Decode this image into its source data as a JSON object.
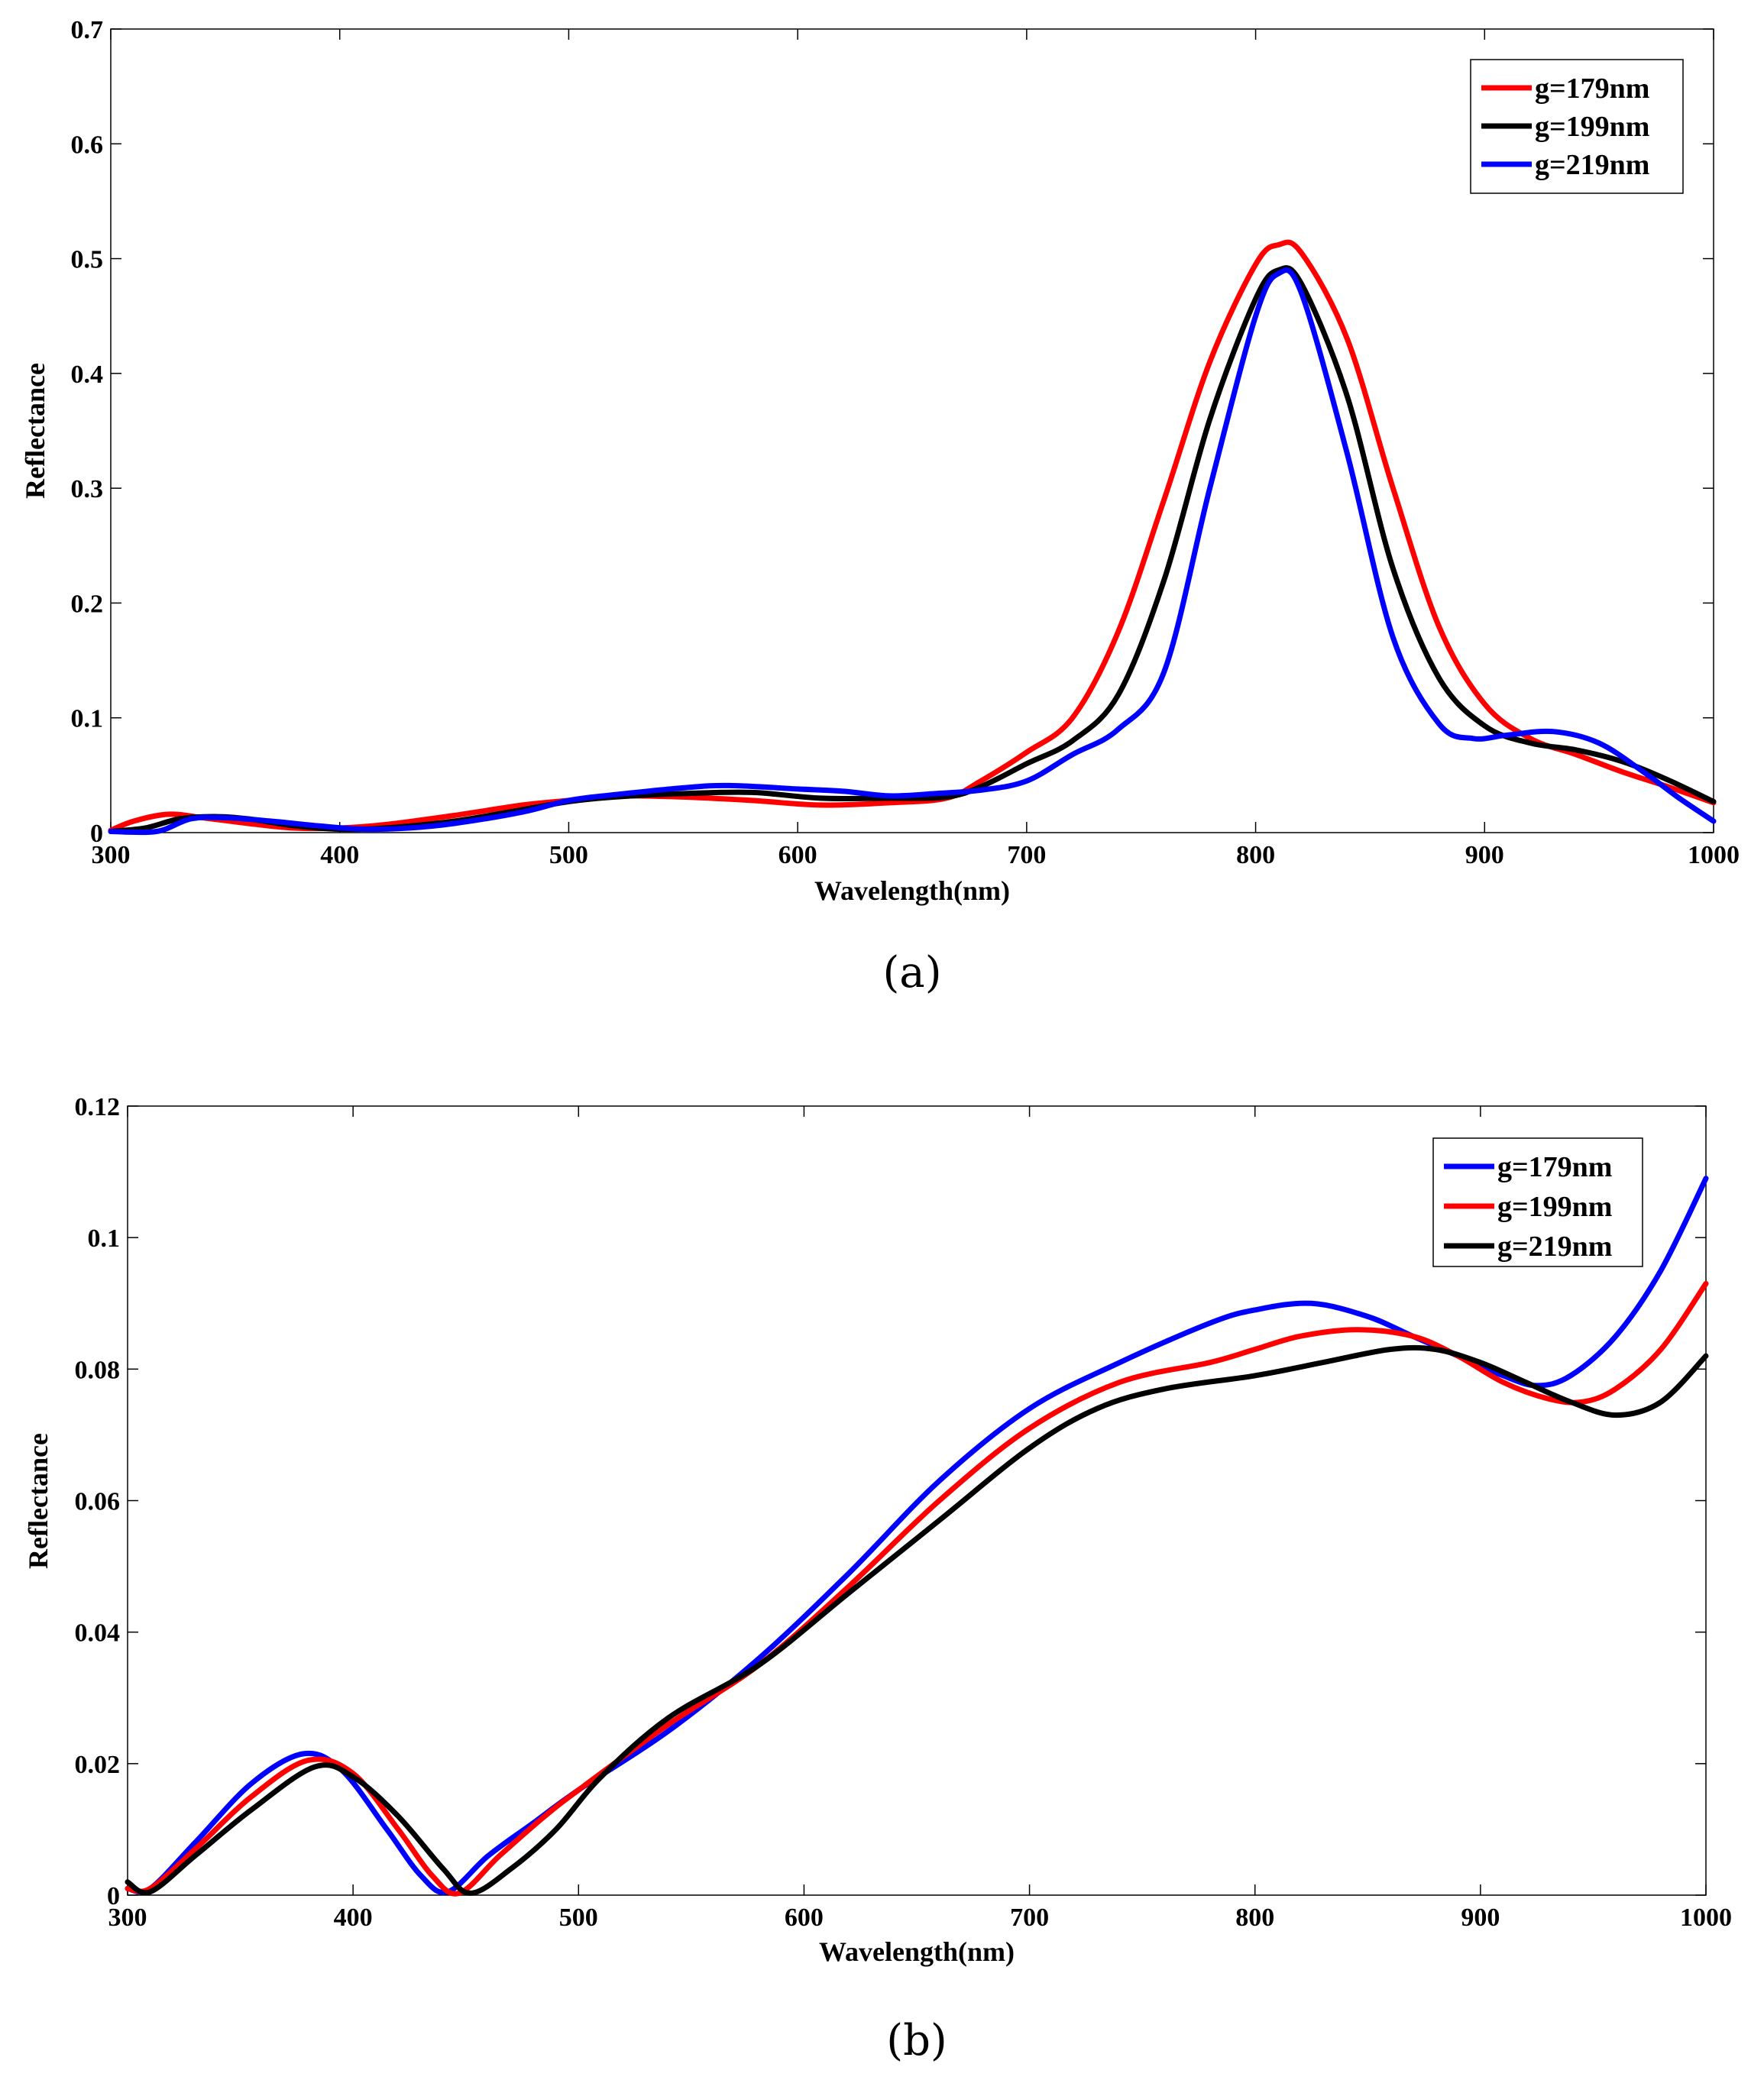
{
  "chart_data": [
    {
      "type": "line",
      "panel_label": "(a)",
      "xlabel": "Wavelength(nm)",
      "ylabel": "Reflectance",
      "xlim": [
        300,
        1000
      ],
      "ylim": [
        0,
        0.7
      ],
      "xticks": [
        300,
        400,
        500,
        600,
        700,
        800,
        900,
        1000
      ],
      "xtick_labels": [
        "300",
        "400",
        "500",
        "600",
        "700",
        "800",
        "900",
        "1000"
      ],
      "yticks": [
        0,
        0.1,
        0.2,
        0.3,
        0.4,
        0.5,
        0.6,
        0.7
      ],
      "ytick_labels": [
        "0",
        "0.1",
        "0.2",
        "0.3",
        "0.4",
        "0.5",
        "0.6",
        "0.7"
      ],
      "legend_position": "top-right",
      "series": [
        {
          "name": "g=179nm",
          "color": "#ff0000",
          "x": [
            300,
            310,
            325,
            340,
            360,
            380,
            400,
            420,
            450,
            480,
            500,
            520,
            550,
            580,
            610,
            640,
            665,
            680,
            700,
            720,
            740,
            760,
            780,
            800,
            810,
            820,
            840,
            860,
            880,
            900,
            920,
            940,
            960,
            980,
            1000
          ],
          "y": [
            0.002,
            0.01,
            0.016,
            0.013,
            0.008,
            0.004,
            0.004,
            0.007,
            0.015,
            0.024,
            0.028,
            0.032,
            0.031,
            0.028,
            0.024,
            0.026,
            0.03,
            0.045,
            0.07,
            0.1,
            0.175,
            0.29,
            0.41,
            0.495,
            0.512,
            0.505,
            0.43,
            0.3,
            0.18,
            0.112,
            0.082,
            0.068,
            0.053,
            0.04,
            0.026
          ]
        },
        {
          "name": "g=199nm",
          "color": "#000000",
          "x": [
            300,
            315,
            330,
            345,
            360,
            380,
            400,
            420,
            450,
            480,
            500,
            520,
            550,
            580,
            610,
            640,
            665,
            680,
            700,
            720,
            740,
            760,
            780,
            800,
            810,
            820,
            840,
            860,
            880,
            900,
            920,
            940,
            960,
            980,
            1000
          ],
          "y": [
            0.001,
            0.004,
            0.012,
            0.014,
            0.012,
            0.006,
            0.003,
            0.004,
            0.01,
            0.02,
            0.027,
            0.031,
            0.034,
            0.035,
            0.03,
            0.03,
            0.031,
            0.04,
            0.06,
            0.08,
            0.12,
            0.22,
            0.36,
            0.465,
            0.49,
            0.478,
            0.38,
            0.23,
            0.135,
            0.093,
            0.078,
            0.072,
            0.062,
            0.046,
            0.027
          ]
        },
        {
          "name": "g=219nm",
          "color": "#0000ff",
          "x": [
            300,
            320,
            335,
            350,
            370,
            390,
            410,
            430,
            450,
            480,
            500,
            520,
            550,
            570,
            600,
            620,
            640,
            660,
            680,
            700,
            720,
            740,
            760,
            780,
            800,
            810,
            820,
            840,
            860,
            880,
            895,
            910,
            930,
            950,
            970,
            985,
            1000
          ],
          "y": [
            0.001,
            0.001,
            0.012,
            0.013,
            0.01,
            0.006,
            0.003,
            0.004,
            0.008,
            0.018,
            0.028,
            0.033,
            0.039,
            0.041,
            0.038,
            0.036,
            0.032,
            0.034,
            0.037,
            0.045,
            0.068,
            0.09,
            0.14,
            0.3,
            0.45,
            0.487,
            0.47,
            0.33,
            0.17,
            0.095,
            0.082,
            0.085,
            0.088,
            0.078,
            0.052,
            0.03,
            0.01
          ]
        }
      ]
    },
    {
      "type": "line",
      "panel_label": "(b)",
      "xlabel": "Wavelength(nm)",
      "ylabel": "Reflectance",
      "xlim": [
        300,
        1000
      ],
      "ylim": [
        0,
        0.12
      ],
      "xticks": [
        300,
        400,
        500,
        600,
        700,
        800,
        900,
        1000
      ],
      "xtick_labels": [
        "300",
        "400",
        "500",
        "600",
        "700",
        "800",
        "900",
        "1000"
      ],
      "yticks": [
        0,
        0.02,
        0.04,
        0.06,
        0.08,
        0.1,
        0.12
      ],
      "ytick_labels": [
        "0",
        "0.02",
        "0.04",
        "0.06",
        "0.08",
        "0.1",
        "0.12"
      ],
      "legend_position": "top-right",
      "series": [
        {
          "name": "g=179nm",
          "color": "#0000ff",
          "x": [
            300,
            310,
            330,
            355,
            378,
            395,
            415,
            430,
            442,
            460,
            480,
            500,
            540,
            580,
            620,
            660,
            700,
            740,
            780,
            800,
            825,
            850,
            870,
            890,
            910,
            925,
            940,
            960,
            980,
            1000
          ],
          "y": [
            0.001,
            0.001,
            0.008,
            0.017,
            0.0215,
            0.019,
            0.01,
            0.003,
            0.0005,
            0.006,
            0.011,
            0.016,
            0.025,
            0.036,
            0.049,
            0.063,
            0.074,
            0.081,
            0.087,
            0.089,
            0.09,
            0.088,
            0.085,
            0.082,
            0.079,
            0.0775,
            0.079,
            0.085,
            0.095,
            0.109
          ]
        },
        {
          "name": "g=199nm",
          "color": "#ff0000",
          "x": [
            300,
            310,
            330,
            355,
            380,
            400,
            420,
            435,
            447,
            465,
            485,
            500,
            540,
            580,
            620,
            660,
            700,
            740,
            780,
            800,
            820,
            845,
            870,
            890,
            910,
            930,
            945,
            960,
            980,
            1000
          ],
          "y": [
            0.001,
            0.001,
            0.007,
            0.015,
            0.0205,
            0.0185,
            0.01,
            0.003,
            0.0003,
            0.006,
            0.012,
            0.016,
            0.026,
            0.035,
            0.047,
            0.06,
            0.071,
            0.078,
            0.081,
            0.083,
            0.085,
            0.086,
            0.085,
            0.082,
            0.078,
            0.0755,
            0.075,
            0.077,
            0.083,
            0.093
          ]
        },
        {
          "name": "g=219nm",
          "color": "#000000",
          "x": [
            300,
            310,
            330,
            355,
            383,
            400,
            420,
            440,
            452,
            470,
            490,
            510,
            540,
            580,
            620,
            660,
            700,
            730,
            760,
            800,
            830,
            860,
            880,
            900,
            920,
            940,
            960,
            980,
            1000
          ],
          "y": [
            0.002,
            0.0005,
            0.006,
            0.013,
            0.0195,
            0.018,
            0.012,
            0.004,
            0.0003,
            0.004,
            0.01,
            0.018,
            0.027,
            0.035,
            0.046,
            0.057,
            0.068,
            0.074,
            0.077,
            0.079,
            0.081,
            0.083,
            0.083,
            0.081,
            0.078,
            0.075,
            0.073,
            0.075,
            0.082
          ]
        }
      ]
    }
  ]
}
